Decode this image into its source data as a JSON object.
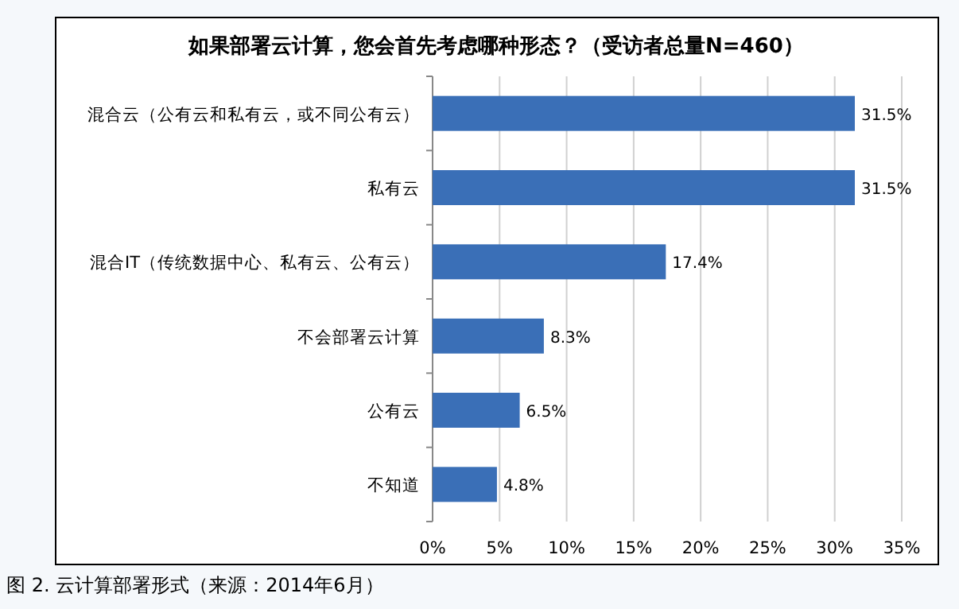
{
  "chart_data": {
    "type": "bar",
    "orientation": "horizontal",
    "title": "如果部署云计算，您会首先考虑哪种形态？（受访者总量N=460）",
    "categories": [
      "混合云（公有云和私有云，或不同公有云）",
      "私有云",
      "混合IT（传统数据中心、私有云、公有云）",
      "不会部署云计算",
      "公有云",
      "不知道"
    ],
    "values": [
      31.5,
      31.5,
      17.4,
      8.3,
      6.5,
      4.8
    ],
    "value_labels": [
      "31.5%",
      "31.5%",
      "17.4%",
      "8.3%",
      "6.5%",
      "4.8%"
    ],
    "color": "#3a6fb7",
    "xlim": [
      0,
      35
    ],
    "xticks": [
      {
        "value": 0,
        "label": "0%"
      },
      {
        "value": 5,
        "label": "5%"
      },
      {
        "value": 10,
        "label": "10%"
      },
      {
        "value": 15,
        "label": "15%"
      },
      {
        "value": 20,
        "label": "20%"
      },
      {
        "value": 25,
        "label": "25%"
      },
      {
        "value": 30,
        "label": "30%"
      },
      {
        "value": 35,
        "label": "35%"
      }
    ],
    "grid": "x",
    "annotations": [
      "图 2. 云计算部署形式（来源：2014年6月）"
    ]
  }
}
